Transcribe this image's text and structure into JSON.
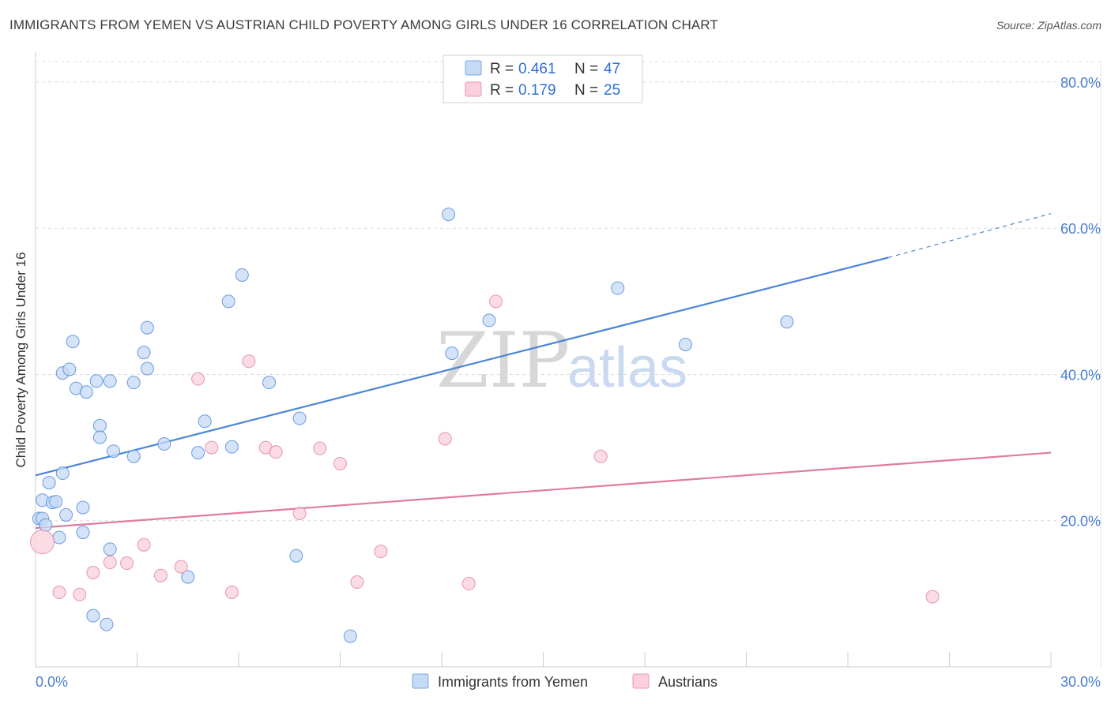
{
  "title": "IMMIGRANTS FROM YEMEN VS AUSTRIAN CHILD POVERTY AMONG GIRLS UNDER 16 CORRELATION CHART",
  "source": "Source: ZipAtlas.com",
  "watermark": {
    "zip": "ZIP",
    "atlas": "atlas"
  },
  "legend": {
    "rows": [
      {
        "r_label": "R =",
        "r_value": "0.461",
        "n_label": "N =",
        "n_value": "47",
        "color": "#aac8f0"
      },
      {
        "r_label": "R =",
        "r_value": "0.179",
        "n_label": "N =",
        "n_value": "25",
        "color": "#f6bfcf"
      }
    ]
  },
  "bottom_legend": [
    {
      "label": "Immigrants from Yemen",
      "color": "#aac8f0"
    },
    {
      "label": "Austrians",
      "color": "#f6bfcf"
    }
  ],
  "chart_data": {
    "type": "scatter",
    "title": "IMMIGRANTS FROM YEMEN VS AUSTRIAN CHILD POVERTY AMONG GIRLS UNDER 16 CORRELATION CHART",
    "xlabel": "",
    "ylabel": "Child Poverty Among Girls Under 16",
    "xlim": [
      0,
      30
    ],
    "ylim": [
      0,
      80
    ],
    "x_tick_labels": [
      "0.0%",
      "30.0%"
    ],
    "y_tick_labels": [
      "20.0%",
      "40.0%",
      "60.0%",
      "80.0%"
    ],
    "y_ticks": [
      20,
      40,
      60,
      80
    ],
    "grid": true,
    "series": [
      {
        "name": "Immigrants from Yemen",
        "color": "#4a86d8",
        "fill": "#c5daf5",
        "r": 0.461,
        "n": 47,
        "trend": {
          "x0": 0,
          "y0": 26.2,
          "x1": 25.2,
          "y1": 56.0,
          "dash_x1": 30,
          "dash_y1": 62.0
        },
        "points": [
          [
            0.1,
            20.3
          ],
          [
            0.2,
            20.3
          ],
          [
            0.2,
            22.8
          ],
          [
            0.3,
            19.4
          ],
          [
            0.4,
            25.2
          ],
          [
            0.5,
            22.5
          ],
          [
            0.6,
            22.6
          ],
          [
            0.7,
            17.7
          ],
          [
            0.8,
            40.2
          ],
          [
            0.8,
            26.5
          ],
          [
            0.9,
            20.8
          ],
          [
            1.0,
            40.7
          ],
          [
            1.1,
            44.5
          ],
          [
            1.2,
            38.1
          ],
          [
            1.4,
            21.8
          ],
          [
            1.4,
            18.4
          ],
          [
            1.5,
            37.6
          ],
          [
            1.7,
            7.0
          ],
          [
            1.8,
            39.1
          ],
          [
            1.9,
            33.0
          ],
          [
            1.9,
            31.4
          ],
          [
            2.1,
            5.8
          ],
          [
            2.2,
            39.1
          ],
          [
            2.2,
            16.1
          ],
          [
            2.3,
            29.5
          ],
          [
            2.9,
            28.8
          ],
          [
            2.9,
            38.9
          ],
          [
            3.2,
            43.0
          ],
          [
            3.3,
            46.4
          ],
          [
            3.3,
            40.8
          ],
          [
            3.8,
            30.5
          ],
          [
            4.5,
            12.3
          ],
          [
            4.8,
            29.3
          ],
          [
            5.0,
            33.6
          ],
          [
            5.7,
            50.0
          ],
          [
            5.8,
            30.1
          ],
          [
            6.1,
            53.6
          ],
          [
            6.9,
            38.9
          ],
          [
            7.7,
            15.2
          ],
          [
            7.8,
            34.0
          ],
          [
            9.3,
            4.2
          ],
          [
            12.2,
            61.9
          ],
          [
            12.3,
            42.9
          ],
          [
            13.4,
            47.4
          ],
          [
            17.2,
            51.8
          ],
          [
            19.2,
            44.1
          ],
          [
            22.2,
            47.2
          ]
        ]
      },
      {
        "name": "Austrians",
        "color": "#e07c9f",
        "fill": "#f9d0dc",
        "r": 0.179,
        "n": 25,
        "trend": {
          "x0": 0,
          "y0": 19.0,
          "x1": 30,
          "y1": 29.3
        },
        "points": [
          [
            0.2,
            17.1
          ],
          [
            0.7,
            10.2
          ],
          [
            1.3,
            9.9
          ],
          [
            1.7,
            12.9
          ],
          [
            2.2,
            14.3
          ],
          [
            2.7,
            14.2
          ],
          [
            3.2,
            16.7
          ],
          [
            3.7,
            12.5
          ],
          [
            4.3,
            13.7
          ],
          [
            4.8,
            39.4
          ],
          [
            5.2,
            30.0
          ],
          [
            5.8,
            10.2
          ],
          [
            6.3,
            41.8
          ],
          [
            6.8,
            30.0
          ],
          [
            7.1,
            29.4
          ],
          [
            7.8,
            21.0
          ],
          [
            8.4,
            29.9
          ],
          [
            9.0,
            27.8
          ],
          [
            9.5,
            11.6
          ],
          [
            10.2,
            15.8
          ],
          [
            12.1,
            31.2
          ],
          [
            12.8,
            11.4
          ],
          [
            13.6,
            50.0
          ],
          [
            16.7,
            28.8
          ],
          [
            26.5,
            9.6
          ]
        ]
      }
    ]
  }
}
